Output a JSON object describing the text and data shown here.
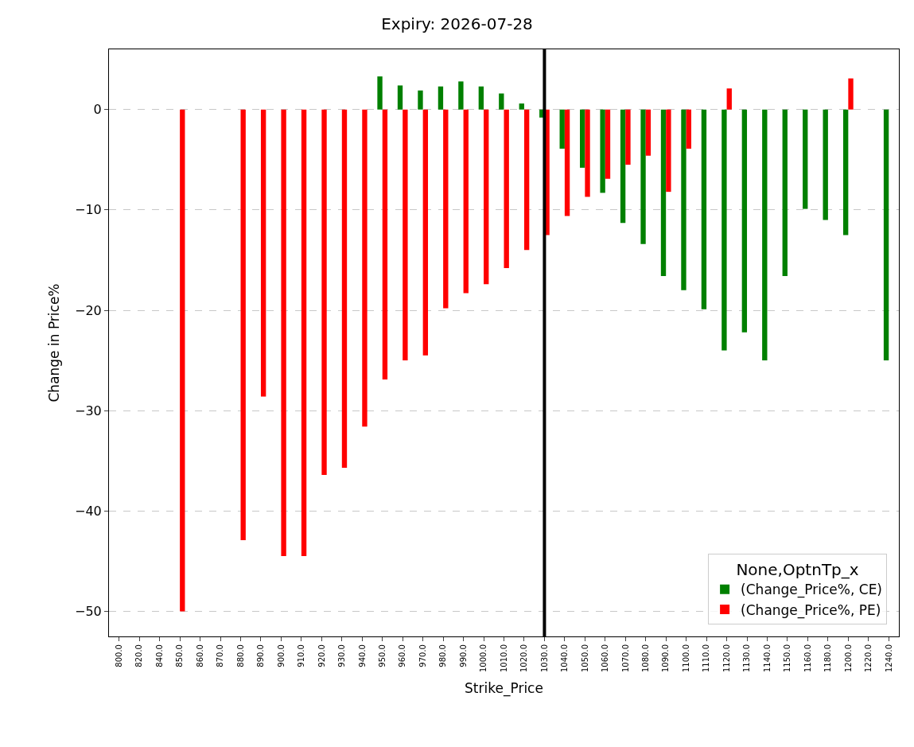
{
  "chart_data": {
    "type": "bar",
    "title": "Expiry: 2026-07-28",
    "xlabel": "Strike_Price",
    "ylabel": "Change in Price%",
    "legend_title": "None,OptnTp_x",
    "categories": [
      "800.0",
      "820.0",
      "840.0",
      "850.0",
      "860.0",
      "870.0",
      "880.0",
      "890.0",
      "900.0",
      "910.0",
      "920.0",
      "930.0",
      "940.0",
      "950.0",
      "960.0",
      "970.0",
      "980.0",
      "990.0",
      "1000.0",
      "1010.0",
      "1020.0",
      "1030.0",
      "1040.0",
      "1050.0",
      "1060.0",
      "1070.0",
      "1080.0",
      "1090.0",
      "1100.0",
      "1110.0",
      "1120.0",
      "1130.0",
      "1140.0",
      "1150.0",
      "1160.0",
      "1180.0",
      "1200.0",
      "1220.0",
      "1240.0"
    ],
    "series": [
      {
        "name": "(Change_Price%, CE)",
        "color": "#008000",
        "values": [
          null,
          null,
          null,
          null,
          null,
          null,
          null,
          null,
          null,
          null,
          null,
          null,
          null,
          3.3,
          2.4,
          1.9,
          2.3,
          2.8,
          2.3,
          1.6,
          0.6,
          -0.8,
          -3.9,
          -5.8,
          -8.3,
          -11.3,
          -13.4,
          -16.6,
          -18.0,
          -19.9,
          -24.0,
          -22.2,
          -25.0,
          -16.6,
          -9.9,
          -11.0,
          -12.5,
          null,
          -25.0
        ]
      },
      {
        "name": "(Change_Price%, PE)",
        "color": "#ff0000",
        "values": [
          null,
          null,
          null,
          -50.0,
          null,
          null,
          -42.9,
          -28.6,
          -44.5,
          -44.5,
          -36.4,
          -35.7,
          -31.6,
          -26.9,
          -25.0,
          -24.5,
          -19.8,
          -18.3,
          -17.4,
          -15.8,
          -14.0,
          -12.5,
          -10.6,
          -8.7,
          -6.9,
          -5.5,
          -4.6,
          -8.2,
          -3.9,
          null,
          2.1,
          null,
          null,
          null,
          null,
          null,
          3.1,
          null,
          null
        ]
      }
    ],
    "ylim": [
      -52.5,
      6.0
    ],
    "yticks": [
      {
        "value": 0,
        "label": "0"
      },
      {
        "value": -10,
        "label": "−10"
      },
      {
        "value": -20,
        "label": "−20"
      },
      {
        "value": -30,
        "label": "−30"
      },
      {
        "value": -40,
        "label": "−40"
      },
      {
        "value": -50,
        "label": "−50"
      }
    ],
    "grid": "y",
    "legend": "bottom right",
    "ref_lines": [
      {
        "axis": "x",
        "value": "1030.0",
        "color": "#000000"
      }
    ]
  }
}
